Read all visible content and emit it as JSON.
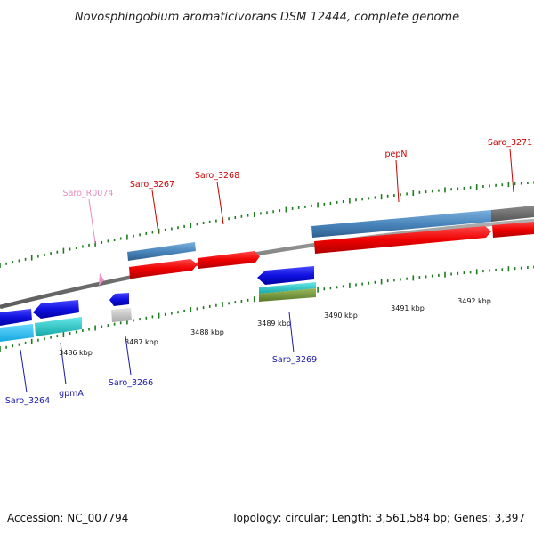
{
  "title": "Novosphingobium aromaticivorans DSM 12444, complete genome",
  "footer": {
    "accession": "Accession: NC_007794",
    "topology": "Topology: circular; Length: 3,561,584 bp; Genes: 3,397"
  },
  "colors": {
    "backbone": "#8a8a8a",
    "forward_label": "#cc0000",
    "reverse_label": "#1a1aaa",
    "rna_label": "#e88cc0",
    "tick": "#1e7a1e"
  },
  "scale_labels": [
    "3486 kbp",
    "3487 kbp",
    "3488 kbp",
    "3489 kbp",
    "3490 kbp",
    "3491 kbp",
    "3492 kbp"
  ],
  "gene_labels": {
    "forward": [
      "Saro_3267",
      "Saro_3268",
      "pepN",
      "Saro_3271"
    ],
    "reverse": [
      "Saro_3264",
      "gpmA",
      "Saro_3266",
      "Saro_3269"
    ],
    "rna": [
      "Saro_R0074"
    ]
  }
}
